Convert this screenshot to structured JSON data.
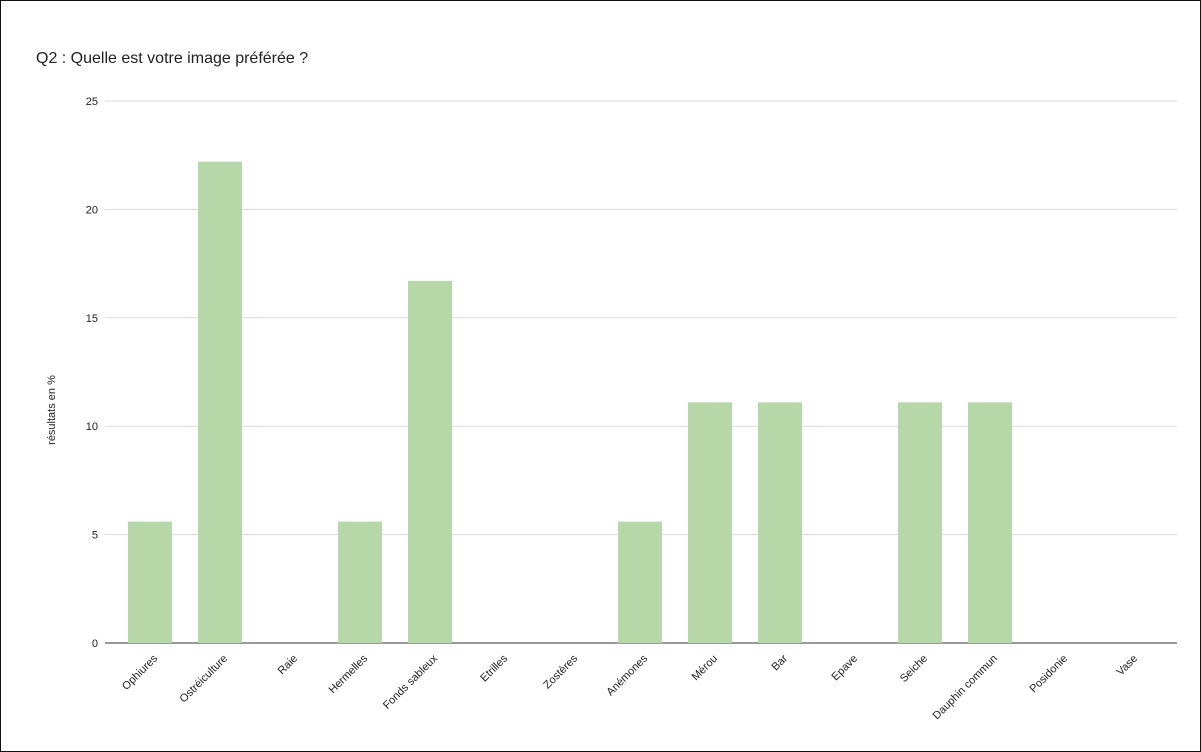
{
  "chart_data": {
    "type": "bar",
    "title": "Q2 : Quelle est votre image préférée ?",
    "xlabel": "",
    "ylabel": "résultats en %",
    "ylim": [
      0,
      25
    ],
    "yticks": [
      "0",
      "5",
      "10",
      "15",
      "20",
      "25"
    ],
    "grid": true,
    "bar_color": "#b6d7a8",
    "categories": [
      "Ophiures",
      "Ostréiculture",
      "Raie",
      "Hermelles",
      "Fonds sableux",
      "Etrilles",
      "Zostères",
      "Anémones",
      "Mérou",
      "Bar",
      "Epave",
      "Seiche",
      "Dauphin commun",
      "Posidonie",
      "Vase"
    ],
    "values": [
      5.6,
      22.2,
      0,
      5.6,
      16.7,
      0,
      0,
      5.6,
      11.1,
      11.1,
      0,
      11.1,
      11.1,
      0,
      0
    ]
  }
}
